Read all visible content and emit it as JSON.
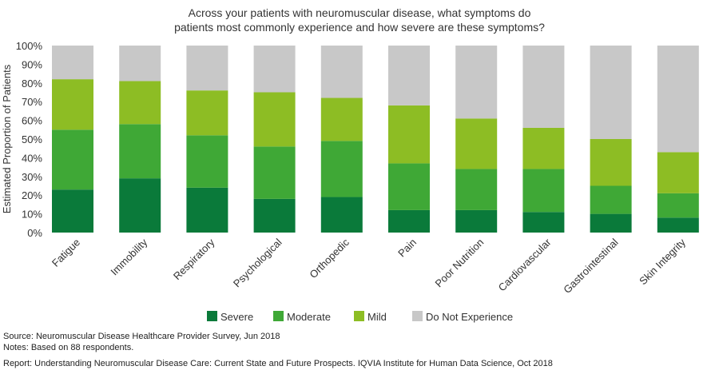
{
  "chart_data": {
    "type": "bar",
    "stacked": true,
    "title_lines": [
      "Across your patients with neuromuscular disease, what symptoms do",
      "patients most commonly experience and how severe are these symptoms?"
    ],
    "ylabel": "Estimated Proportion of Patients",
    "xlabel": "",
    "ylim": [
      0,
      100
    ],
    "yticks": [
      "0%",
      "10%",
      "20%",
      "30%",
      "40%",
      "50%",
      "60%",
      "70%",
      "80%",
      "90%",
      "100%"
    ],
    "categories": [
      "Fatigue",
      "Immobility",
      "Respiratory",
      "Psychological",
      "Orthopedic",
      "Pain",
      "Poor Nutrition",
      "Cardiovascular",
      "Gastrointestinal",
      "Skin Integrity"
    ],
    "series": [
      {
        "name": "Severe",
        "color": "#0a7a3a",
        "values": [
          23,
          29,
          24,
          18,
          19,
          12,
          12,
          11,
          10,
          8
        ]
      },
      {
        "name": "Moderate",
        "color": "#3fa836",
        "values": [
          32,
          29,
          28,
          28,
          30,
          25,
          22,
          23,
          15,
          13
        ]
      },
      {
        "name": "Mild",
        "color": "#8dbd24",
        "values": [
          27,
          23,
          24,
          29,
          23,
          31,
          27,
          22,
          25,
          22
        ]
      },
      {
        "name": "Do Not Experience",
        "color": "#c8c8c8",
        "values": [
          18,
          19,
          24,
          25,
          28,
          32,
          39,
          44,
          50,
          57
        ]
      }
    ],
    "grid": false,
    "legend_position": "bottom"
  },
  "footnotes": {
    "source": "Source: Neuromuscular Disease Healthcare Provider Survey, Jun 2018",
    "notes": "Notes: Based on 88 respondents.",
    "report": "Report: Understanding Neuromuscular Disease Care: Current State and Future Prospects. IQVIA Institute for Human Data Science, Oct 2018"
  }
}
